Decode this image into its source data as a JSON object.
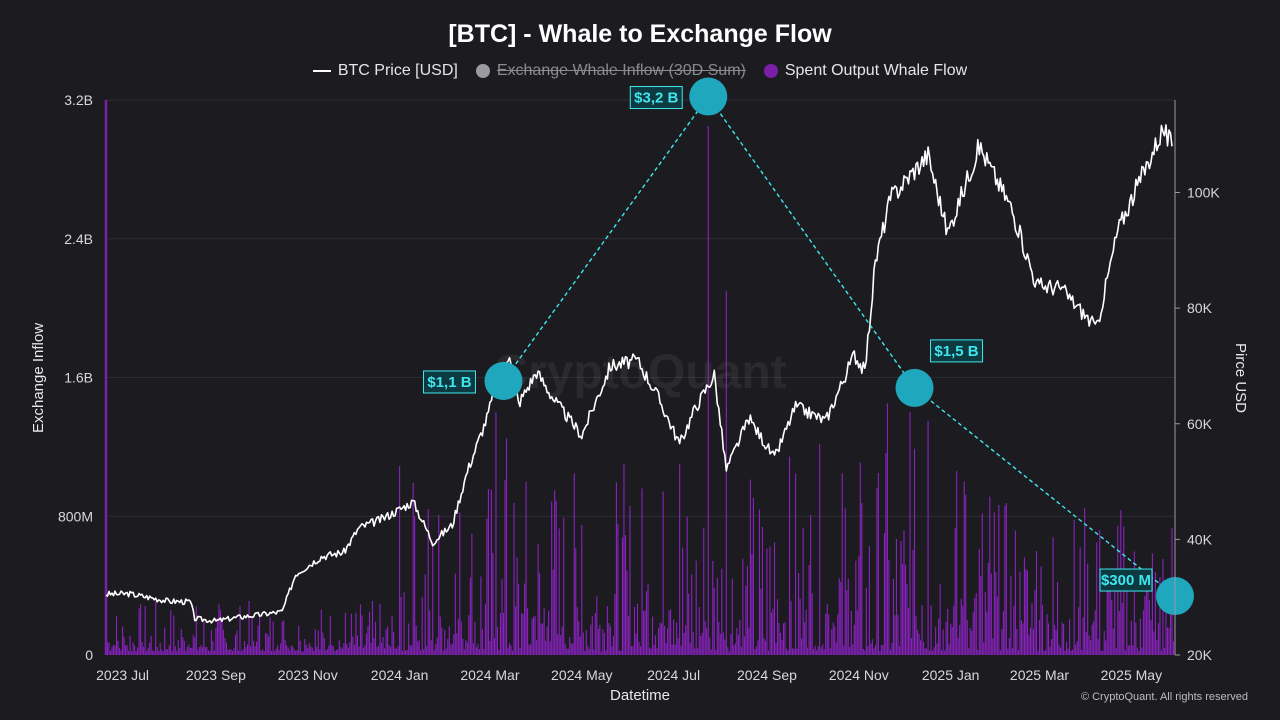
{
  "chart_data": {
    "type": "bar+line",
    "title": "[BTC] - Whale to Exchange Flow",
    "legend": [
      {
        "name": "BTC Price [USD]",
        "marker": "line",
        "color": "#ffffff",
        "enabled": true
      },
      {
        "name": "Exchange Whale Inflow (30D Sum)",
        "marker": "dot",
        "color": "#9a9aa0",
        "enabled": false
      },
      {
        "name": "Spent Output Whale Flow",
        "marker": "dot",
        "color": "#7a1fa8",
        "enabled": true
      }
    ],
    "xlabel": "Datetime",
    "ylabel_left": "Exchange Inflow",
    "ylabel_right": "Pirce USD",
    "x_range": [
      "2023-06-20",
      "2025-05-30"
    ],
    "x_ticks": [
      {
        "label": "2023 Jul",
        "date": "2023-07-01"
      },
      {
        "label": "2023 Sep",
        "date": "2023-09-01"
      },
      {
        "label": "2023 Nov",
        "date": "2023-11-01"
      },
      {
        "label": "2024 Jan",
        "date": "2024-01-01"
      },
      {
        "label": "2024 Mar",
        "date": "2024-03-01"
      },
      {
        "label": "2024 May",
        "date": "2024-05-01"
      },
      {
        "label": "2024 Jul",
        "date": "2024-07-01"
      },
      {
        "label": "2024 Sep",
        "date": "2024-09-01"
      },
      {
        "label": "2024 Nov",
        "date": "2024-11-01"
      },
      {
        "label": "2025 Jan",
        "date": "2025-01-01"
      },
      {
        "label": "2025 Mar",
        "date": "2025-03-01"
      },
      {
        "label": "2025 May",
        "date": "2025-05-01"
      }
    ],
    "y_left": {
      "min": 0,
      "max": 3200000000,
      "ticks": [
        {
          "label": "0",
          "value": 0
        },
        {
          "label": "800M",
          "value": 800000000
        },
        {
          "label": "1.6B",
          "value": 1600000000
        },
        {
          "label": "2.4B",
          "value": 2400000000
        },
        {
          "label": "3.2B",
          "value": 3200000000
        }
      ]
    },
    "y_right": {
      "min": 20000,
      "max": 116000,
      "ticks": [
        {
          "label": "20K",
          "value": 20000
        },
        {
          "label": "40K",
          "value": 40000
        },
        {
          "label": "60K",
          "value": 60000
        },
        {
          "label": "80K",
          "value": 80000
        },
        {
          "label": "100K",
          "value": 100000
        }
      ]
    },
    "grid": true,
    "btc_price": [
      [
        "2023-06-20",
        30500
      ],
      [
        "2023-07-05",
        30600
      ],
      [
        "2023-07-20",
        29900
      ],
      [
        "2023-08-01",
        29300
      ],
      [
        "2023-08-15",
        29200
      ],
      [
        "2023-08-18",
        26300
      ],
      [
        "2023-09-01",
        25900
      ],
      [
        "2023-09-15",
        26500
      ],
      [
        "2023-10-01",
        27000
      ],
      [
        "2023-10-15",
        27500
      ],
      [
        "2023-10-24",
        34000
      ],
      [
        "2023-11-10",
        37000
      ],
      [
        "2023-11-25",
        37800
      ],
      [
        "2023-12-05",
        42000
      ],
      [
        "2023-12-20",
        43500
      ],
      [
        "2024-01-10",
        46500
      ],
      [
        "2024-01-23",
        39500
      ],
      [
        "2024-02-05",
        42500
      ],
      [
        "2024-02-15",
        51800
      ],
      [
        "2024-02-28",
        61000
      ],
      [
        "2024-03-05",
        66500
      ],
      [
        "2024-03-14",
        72500
      ],
      [
        "2024-03-20",
        63500
      ],
      [
        "2024-04-01",
        69000
      ],
      [
        "2024-04-13",
        64000
      ],
      [
        "2024-05-01",
        58000
      ],
      [
        "2024-05-20",
        70000
      ],
      [
        "2024-06-07",
        71000
      ],
      [
        "2024-06-20",
        65000
      ],
      [
        "2024-07-05",
        56500
      ],
      [
        "2024-07-15",
        62500
      ],
      [
        "2024-07-28",
        68500
      ],
      [
        "2024-08-05",
        52000
      ],
      [
        "2024-08-20",
        61000
      ],
      [
        "2024-09-06",
        54000
      ],
      [
        "2024-09-20",
        63000
      ],
      [
        "2024-10-10",
        60500
      ],
      [
        "2024-10-29",
        72000
      ],
      [
        "2024-11-05",
        69000
      ],
      [
        "2024-11-12",
        88000
      ],
      [
        "2024-11-22",
        99000
      ],
      [
        "2024-12-05",
        103000
      ],
      [
        "2024-12-17",
        106500
      ],
      [
        "2024-12-30",
        93000
      ],
      [
        "2025-01-20",
        108000
      ],
      [
        "2025-02-10",
        97500
      ],
      [
        "2025-02-27",
        84000
      ],
      [
        "2025-03-15",
        83500
      ],
      [
        "2025-04-08",
        76500
      ],
      [
        "2025-04-22",
        93500
      ],
      [
        "2025-05-10",
        104000
      ],
      [
        "2025-05-22",
        111000
      ],
      [
        "2025-05-28",
        108000
      ]
    ],
    "spent_output_whale_flow": {
      "note": "daily bars, values 0-3.2B",
      "peaks": [
        [
          "2024-01-11",
          800000000
        ],
        [
          "2024-03-05",
          1400000000
        ],
        [
          "2024-03-12",
          1250000000
        ],
        [
          "2024-04-13",
          950000000
        ],
        [
          "2024-05-01",
          750000000
        ],
        [
          "2024-07-05",
          1100000000
        ],
        [
          "2024-07-24",
          3050000000
        ],
        [
          "2024-08-05",
          2100000000
        ],
        [
          "2024-09-06",
          650000000
        ],
        [
          "2024-11-20",
          1450000000
        ],
        [
          "2024-12-05",
          1400000000
        ],
        [
          "2024-12-17",
          1350000000
        ],
        [
          "2025-01-10",
          1000000000
        ],
        [
          "2025-02-27",
          600000000
        ],
        [
          "2025-04-08",
          650000000
        ],
        [
          "2025-05-20",
          450000000
        ]
      ]
    },
    "annotations": [
      {
        "label": "$1,1 B",
        "date": "2024-03-10",
        "value": 1580000000
      },
      {
        "label": "$3,2 B",
        "date": "2024-07-24",
        "value": 3220000000
      },
      {
        "label": "$1,5 B",
        "date": "2024-12-08",
        "value": 1540000000
      },
      {
        "label": "$300 M",
        "date": "2025-05-30",
        "value": 340000000
      }
    ]
  },
  "credit": "© CryptoQuant. All rights reserved",
  "watermark": "CryptoQuant",
  "colors": {
    "background": "#1c1c20",
    "bars": "#7a1fa8",
    "price": "#ffffff",
    "annotation": "#1fa8bd",
    "annotation_text": "#3fe6ee"
  }
}
